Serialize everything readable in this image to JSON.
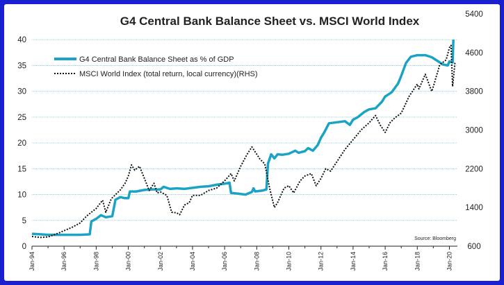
{
  "chart_data": {
    "type": "line",
    "title": "G4 Central Bank Balance Sheet vs. MSCI World Index",
    "source": "Source: Bloomberg",
    "x_ticks": [
      "Jan-94",
      "Jan-96",
      "Jan-98",
      "Jan-00",
      "Jan-02",
      "Jan-04",
      "Jan-06",
      "Jan-08",
      "Jan-10",
      "Jan-12",
      "Jan-14",
      "Jan-16",
      "Jan-18",
      "Jan-20"
    ],
    "xlim": [
      1994.0,
      2020.5
    ],
    "y_left": {
      "lim": [
        0,
        45
      ],
      "ticks": [
        "0",
        "5",
        "10",
        "15",
        "20",
        "25",
        "30",
        "35",
        "40"
      ]
    },
    "y_right": {
      "lim": [
        600,
        5400
      ],
      "ticks": [
        "600",
        "1400",
        "2200",
        "3000",
        "3800",
        "4600",
        "5400"
      ]
    },
    "grid": true,
    "legend_position": "top-left",
    "colors": {
      "balance_sheet": "#1aa3c4",
      "msci": "#111111",
      "grid": "#7ec8dc",
      "frame": "#1a1fd0"
    },
    "series": [
      {
        "name": "G4 Central Bank Balance Sheet as % of GDP",
        "axis": "left",
        "style": "solid",
        "points": [
          [
            1994.0,
            2.4
          ],
          [
            1995.0,
            2.2
          ],
          [
            1996.0,
            2.2
          ],
          [
            1997.0,
            2.2
          ],
          [
            1997.6,
            2.3
          ],
          [
            1997.7,
            4.8
          ],
          [
            1998.0,
            5.3
          ],
          [
            1998.3,
            6.0
          ],
          [
            1998.6,
            5.6
          ],
          [
            1999.0,
            5.8
          ],
          [
            1999.2,
            9.0
          ],
          [
            1999.5,
            9.5
          ],
          [
            1999.8,
            9.3
          ],
          [
            2000.0,
            9.3
          ],
          [
            2000.1,
            10.6
          ],
          [
            2000.5,
            10.6
          ],
          [
            2001.0,
            10.9
          ],
          [
            2001.5,
            11.0
          ],
          [
            2002.0,
            11.0
          ],
          [
            2002.2,
            11.5
          ],
          [
            2002.6,
            11.1
          ],
          [
            2003.0,
            11.2
          ],
          [
            2003.5,
            11.1
          ],
          [
            2004.0,
            11.3
          ],
          [
            2004.5,
            11.5
          ],
          [
            2005.0,
            11.6
          ],
          [
            2005.5,
            11.9
          ],
          [
            2006.0,
            12.1
          ],
          [
            2006.3,
            12.3
          ],
          [
            2006.4,
            10.3
          ],
          [
            2006.8,
            10.2
          ],
          [
            2007.3,
            10.0
          ],
          [
            2007.7,
            10.5
          ],
          [
            2007.8,
            11.2
          ],
          [
            2007.9,
            10.6
          ],
          [
            2008.4,
            10.8
          ],
          [
            2008.6,
            11.0
          ],
          [
            2008.7,
            16.0
          ],
          [
            2008.9,
            17.8
          ],
          [
            2009.1,
            17.0
          ],
          [
            2009.3,
            17.8
          ],
          [
            2009.6,
            17.7
          ],
          [
            2010.0,
            17.9
          ],
          [
            2010.4,
            18.5
          ],
          [
            2010.6,
            18.1
          ],
          [
            2011.0,
            18.4
          ],
          [
            2011.2,
            19.0
          ],
          [
            2011.5,
            18.5
          ],
          [
            2011.8,
            19.6
          ],
          [
            2012.0,
            21.0
          ],
          [
            2012.2,
            22.0
          ],
          [
            2012.5,
            23.8
          ],
          [
            2013.0,
            24.0
          ],
          [
            2013.5,
            24.2
          ],
          [
            2013.8,
            23.5
          ],
          [
            2014.0,
            24.5
          ],
          [
            2014.3,
            25.0
          ],
          [
            2014.7,
            26.0
          ],
          [
            2015.0,
            26.5
          ],
          [
            2015.4,
            26.7
          ],
          [
            2015.8,
            28.0
          ],
          [
            2016.0,
            29.0
          ],
          [
            2016.4,
            29.8
          ],
          [
            2016.8,
            31.5
          ],
          [
            2017.0,
            33.0
          ],
          [
            2017.3,
            35.5
          ],
          [
            2017.6,
            36.7
          ],
          [
            2018.0,
            37.0
          ],
          [
            2018.5,
            37.0
          ],
          [
            2018.9,
            36.6
          ],
          [
            2019.3,
            35.8
          ],
          [
            2019.6,
            35.2
          ],
          [
            2019.9,
            35.0
          ],
          [
            2020.0,
            35.8
          ],
          [
            2020.2,
            35.6
          ],
          [
            2020.25,
            40.0
          ]
        ]
      },
      {
        "name": "MSCI World Index (total return, local currency)(RHS)",
        "axis": "right",
        "style": "dotted",
        "points": [
          [
            1994.0,
            800
          ],
          [
            1994.5,
            780
          ],
          [
            1995.0,
            790
          ],
          [
            1995.5,
            850
          ],
          [
            1996.0,
            920
          ],
          [
            1996.5,
            990
          ],
          [
            1997.0,
            1080
          ],
          [
            1997.4,
            1220
          ],
          [
            1997.7,
            1300
          ],
          [
            1998.0,
            1380
          ],
          [
            1998.4,
            1550
          ],
          [
            1998.6,
            1300
          ],
          [
            1998.9,
            1550
          ],
          [
            1999.0,
            1600
          ],
          [
            1999.5,
            1760
          ],
          [
            1999.8,
            1900
          ],
          [
            2000.0,
            2050
          ],
          [
            2000.2,
            2280
          ],
          [
            2000.4,
            2170
          ],
          [
            2000.7,
            2250
          ],
          [
            2001.0,
            2000
          ],
          [
            2001.3,
            1750
          ],
          [
            2001.6,
            1900
          ],
          [
            2001.8,
            1700
          ],
          [
            2002.0,
            1720
          ],
          [
            2002.4,
            1650
          ],
          [
            2002.7,
            1300
          ],
          [
            2003.0,
            1290
          ],
          [
            2003.2,
            1250
          ],
          [
            2003.5,
            1450
          ],
          [
            2003.8,
            1500
          ],
          [
            2004.0,
            1650
          ],
          [
            2004.5,
            1650
          ],
          [
            2005.0,
            1750
          ],
          [
            2005.5,
            1800
          ],
          [
            2006.0,
            1950
          ],
          [
            2006.4,
            2100
          ],
          [
            2006.6,
            1950
          ],
          [
            2007.0,
            2250
          ],
          [
            2007.4,
            2500
          ],
          [
            2007.7,
            2650
          ],
          [
            2007.9,
            2550
          ],
          [
            2008.2,
            2400
          ],
          [
            2008.5,
            2300
          ],
          [
            2008.8,
            1800
          ],
          [
            2009.1,
            1400
          ],
          [
            2009.3,
            1500
          ],
          [
            2009.7,
            1800
          ],
          [
            2010.0,
            1850
          ],
          [
            2010.3,
            1700
          ],
          [
            2010.7,
            1950
          ],
          [
            2011.0,
            2050
          ],
          [
            2011.4,
            2100
          ],
          [
            2011.7,
            1850
          ],
          [
            2012.0,
            2000
          ],
          [
            2012.3,
            2200
          ],
          [
            2012.6,
            2150
          ],
          [
            2013.0,
            2350
          ],
          [
            2013.5,
            2600
          ],
          [
            2014.0,
            2800
          ],
          [
            2014.5,
            3000
          ],
          [
            2015.0,
            3150
          ],
          [
            2015.4,
            3300
          ],
          [
            2015.7,
            3100
          ],
          [
            2016.0,
            2950
          ],
          [
            2016.3,
            3150
          ],
          [
            2016.6,
            3250
          ],
          [
            2017.0,
            3350
          ],
          [
            2017.5,
            3700
          ],
          [
            2018.0,
            3950
          ],
          [
            2018.1,
            3850
          ],
          [
            2018.5,
            4150
          ],
          [
            2018.9,
            3800
          ],
          [
            2019.0,
            3900
          ],
          [
            2019.4,
            4350
          ],
          [
            2019.8,
            4450
          ],
          [
            2020.0,
            4700
          ],
          [
            2020.1,
            4750
          ],
          [
            2020.2,
            3900
          ],
          [
            2020.35,
            4400
          ]
        ]
      }
    ]
  }
}
